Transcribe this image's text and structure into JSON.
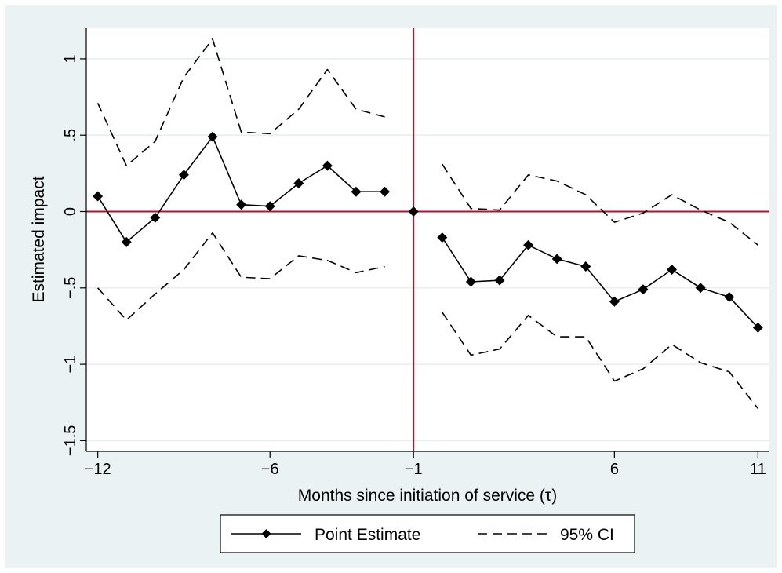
{
  "chart_data": {
    "type": "line",
    "xlabel": "Months since initiation of service (τ)",
    "ylabel": "Estimated impact",
    "xlim": [
      -12.4,
      11.4
    ],
    "ylim": [
      -1.57,
      1.2
    ],
    "x_ticks": [
      -12,
      -6,
      -1,
      6,
      11
    ],
    "x_tick_labels": [
      "−12",
      "−6",
      "−1",
      "6",
      "11"
    ],
    "y_ticks": [
      1,
      0.5,
      0,
      -0.5,
      -1,
      -1.5
    ],
    "y_tick_labels": [
      "1",
      ".5",
      "0",
      "−.5",
      "−1",
      "−1.5"
    ],
    "reference_lines": {
      "vertical_x": -1,
      "horizontal_y": 0
    },
    "grid": true,
    "legend_position": "bottom-center",
    "colors": {
      "background": "#eaf2f3",
      "plot": "#ffffff",
      "grid": "#e4ecec",
      "ref": "#b5102d",
      "series": "#000000"
    },
    "series": [
      {
        "name": "Point Estimate",
        "style": "solid-diamond",
        "segments": [
          {
            "x": [
              -12,
              -11,
              -10,
              -9,
              -8,
              -7,
              -6,
              -5,
              -4,
              -3,
              -2
            ],
            "y": [
              0.1,
              -0.2,
              -0.04,
              0.24,
              0.49,
              0.045,
              0.035,
              0.185,
              0.3,
              0.13,
              0.13
            ]
          },
          {
            "x": [
              -1
            ],
            "y": [
              0.0
            ]
          },
          {
            "x": [
              0,
              1,
              2,
              3,
              4,
              5,
              6,
              7,
              8,
              9,
              10,
              11
            ],
            "y": [
              -0.17,
              -0.46,
              -0.45,
              -0.22,
              -0.31,
              -0.36,
              -0.59,
              -0.51,
              -0.38,
              -0.5,
              -0.56,
              -0.76
            ]
          }
        ]
      },
      {
        "name": "95% CI",
        "style": "dashed",
        "segments": [
          {
            "x": [
              -12,
              -11,
              -10,
              -9,
              -8,
              -7,
              -6,
              -5,
              -4,
              -3,
              -2
            ],
            "y": [
              0.71,
              0.3,
              0.46,
              0.88,
              1.13,
              0.52,
              0.51,
              0.67,
              0.93,
              0.67,
              0.62
            ]
          },
          {
            "x": [
              -12,
              -11,
              -10,
              -9,
              -8,
              -7,
              -6,
              -5,
              -4,
              -3,
              -2
            ],
            "y": [
              -0.5,
              -0.71,
              -0.54,
              -0.38,
              -0.14,
              -0.43,
              -0.44,
              -0.29,
              -0.32,
              -0.4,
              -0.36
            ]
          },
          {
            "x": [
              0,
              1,
              2,
              3,
              4,
              5,
              6,
              7,
              8,
              9,
              10,
              11
            ],
            "y": [
              0.31,
              0.02,
              0.01,
              0.24,
              0.2,
              0.11,
              -0.07,
              -0.01,
              0.11,
              0.01,
              -0.07,
              -0.22
            ]
          },
          {
            "x": [
              0,
              1,
              2,
              3,
              4,
              5,
              6,
              7,
              8,
              9,
              10,
              11
            ],
            "y": [
              -0.66,
              -0.94,
              -0.9,
              -0.68,
              -0.82,
              -0.82,
              -1.11,
              -1.03,
              -0.87,
              -0.99,
              -1.05,
              -1.29
            ]
          }
        ]
      }
    ]
  }
}
